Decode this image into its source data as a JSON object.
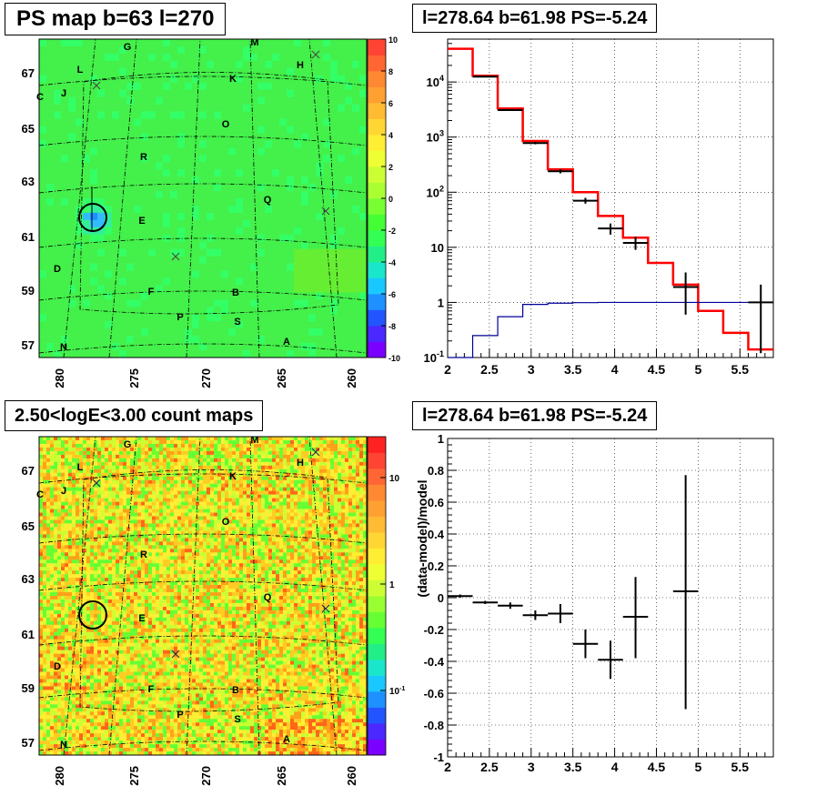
{
  "panels": {
    "top_left": {
      "title": "PS map b=63 l=270"
    },
    "top_right": {
      "title": "l=278.64 b=61.98 PS=-5.24"
    },
    "bottom_left": {
      "title": "2.50<logE<3.00 count maps"
    },
    "bottom_right": {
      "title": "l=278.64 b=61.98 PS=-5.24"
    }
  },
  "sky_maps": {
    "x_ticks": [
      "280",
      "275",
      "270",
      "265",
      "260"
    ],
    "y_ticks": [
      "67",
      "65",
      "63",
      "61",
      "59",
      "57"
    ],
    "source_labels": [
      "G",
      "M",
      "L",
      "H",
      "K",
      "C",
      "J",
      "O",
      "R",
      "Q",
      "E",
      "D",
      "F",
      "B",
      "P",
      "S",
      "N",
      "A"
    ],
    "ps_colorbar_ticks": [
      "10",
      "8",
      "6",
      "4",
      "2",
      "0",
      "-2",
      "-4",
      "-6",
      "-8",
      "-10"
    ],
    "count_colorbar_ticks": [
      "10",
      "1",
      "10-1"
    ]
  },
  "chart_data": [
    {
      "type": "line",
      "panel": "top_right",
      "title": "l=278.64 b=61.98 PS=-5.24",
      "xlabel": "",
      "ylabel": "",
      "xlim": [
        2,
        5.9
      ],
      "ylim": [
        0.1,
        60000
      ],
      "yscale": "log",
      "x_ticks": [
        "2",
        "2.5",
        "3",
        "3.5",
        "4",
        "4.5",
        "5",
        "5.5"
      ],
      "y_ticks": [
        "10-1",
        "1",
        "10",
        "102",
        "103",
        "104"
      ],
      "grid": true,
      "series": [
        {
          "color": "#ff0000",
          "edges": [
            2.0,
            2.3,
            2.6,
            2.9,
            3.2,
            3.5,
            3.8,
            4.1,
            4.4,
            4.7,
            5.0,
            5.3,
            5.6,
            5.9
          ],
          "values": [
            40000,
            13000,
            3300,
            850,
            260,
            100,
            37,
            15,
            5.2,
            2.1,
            0.7,
            0.28,
            0.14
          ]
        },
        {
          "color": "#000099",
          "edges": [
            2.0,
            2.3,
            2.6,
            2.9,
            3.2,
            3.5,
            3.8,
            4.1,
            4.4,
            4.7,
            5.0,
            5.3,
            5.6,
            5.9
          ],
          "values": [
            0.05,
            0.25,
            0.55,
            0.92,
            0.97,
            0.99,
            1.0,
            1.0,
            1.0,
            1.0,
            1.0,
            1.0,
            1.0
          ]
        },
        {
          "color": "#000000",
          "points": [
            {
              "x": 2.45,
              "y": 12500,
              "xerr": 0.15,
              "ylo": 12200,
              "yhi": 12800
            },
            {
              "x": 2.75,
              "y": 3100,
              "xerr": 0.15,
              "ylo": 3000,
              "yhi": 3200
            },
            {
              "x": 3.05,
              "y": 780,
              "xerr": 0.15,
              "ylo": 740,
              "yhi": 820
            },
            {
              "x": 3.35,
              "y": 240,
              "xerr": 0.15,
              "ylo": 220,
              "yhi": 260
            },
            {
              "x": 3.65,
              "y": 70,
              "xerr": 0.15,
              "ylo": 62,
              "yhi": 79
            },
            {
              "x": 3.95,
              "y": 22,
              "xerr": 0.15,
              "ylo": 17,
              "yhi": 27
            },
            {
              "x": 4.25,
              "y": 12,
              "xerr": 0.15,
              "ylo": 9,
              "yhi": 15.5
            },
            {
              "x": 4.85,
              "y": 1.9,
              "xerr": 0.15,
              "ylo": 0.6,
              "yhi": 3.5
            },
            {
              "x": 5.75,
              "y": 1.0,
              "xerr": 0.15,
              "ylo": 0.12,
              "yhi": 2.1
            }
          ]
        }
      ]
    },
    {
      "type": "scatter",
      "panel": "bottom_right",
      "title": "l=278.64 b=61.98 PS=-5.24",
      "xlabel": "",
      "ylabel": "(data-model)/model",
      "xlim": [
        2,
        5.9
      ],
      "ylim": [
        -1,
        1
      ],
      "x_ticks": [
        "2",
        "2.5",
        "3",
        "3.5",
        "4",
        "4.5",
        "5",
        "5.5"
      ],
      "y_ticks": [
        "1",
        "0.8",
        "0.6",
        "0.4",
        "0.2",
        "0",
        "-0.2",
        "-0.4",
        "-0.6",
        "-0.8",
        "-1"
      ],
      "grid": true,
      "series": [
        {
          "color": "#000000",
          "points": [
            {
              "x": 2.15,
              "y": 0.01,
              "xerr": 0.15,
              "ylo": 0.0,
              "yhi": 0.02
            },
            {
              "x": 2.45,
              "y": -0.03,
              "xerr": 0.15,
              "ylo": -0.04,
              "yhi": -0.02
            },
            {
              "x": 2.75,
              "y": -0.05,
              "xerr": 0.15,
              "ylo": -0.07,
              "yhi": -0.03
            },
            {
              "x": 3.05,
              "y": -0.11,
              "xerr": 0.15,
              "ylo": -0.14,
              "yhi": -0.08
            },
            {
              "x": 3.35,
              "y": -0.1,
              "xerr": 0.15,
              "ylo": -0.16,
              "yhi": -0.04
            },
            {
              "x": 3.65,
              "y": -0.29,
              "xerr": 0.15,
              "ylo": -0.38,
              "yhi": -0.2
            },
            {
              "x": 3.95,
              "y": -0.39,
              "xerr": 0.15,
              "ylo": -0.51,
              "yhi": -0.27
            },
            {
              "x": 4.25,
              "y": -0.12,
              "xerr": 0.15,
              "ylo": -0.38,
              "yhi": 0.13
            },
            {
              "x": 4.85,
              "y": 0.04,
              "xerr": 0.15,
              "ylo": -0.7,
              "yhi": 0.77
            }
          ]
        }
      ]
    }
  ]
}
